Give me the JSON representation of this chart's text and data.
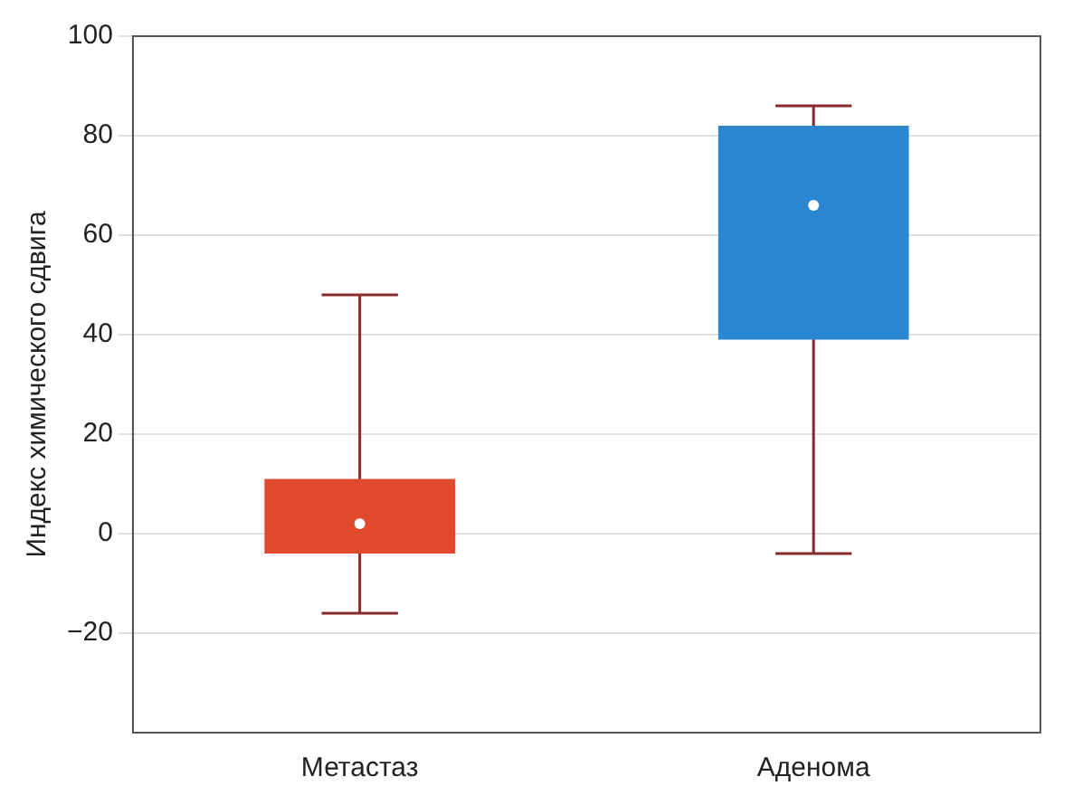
{
  "chart_data": {
    "type": "box",
    "ylabel": "Индекс химического сдвига",
    "categories": [
      "Метастаз",
      "Аденома"
    ],
    "boxes": [
      {
        "low": -16,
        "q1": -4,
        "median": 2,
        "q3": 11,
        "high": 48
      },
      {
        "low": -4,
        "q1": 39,
        "median": 66,
        "q3": 82,
        "high": 86
      }
    ],
    "colors": [
      "#e0492b",
      "#2a86d1"
    ],
    "ylim": [
      -40,
      100
    ],
    "yticks": [
      -20,
      0,
      20,
      40,
      60,
      80,
      100
    ],
    "grid": "y"
  }
}
